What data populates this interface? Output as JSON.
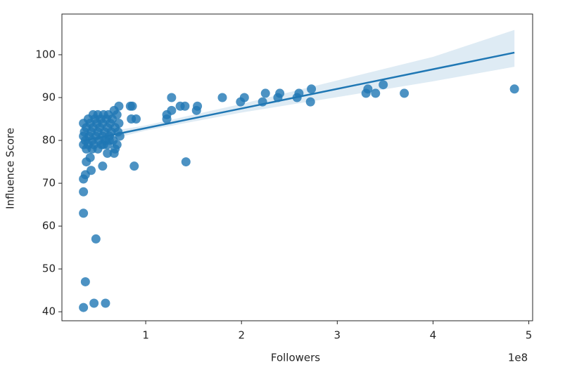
{
  "chart_data": {
    "type": "scatter",
    "x_label": "Followers",
    "y_label": "Influence Score",
    "x_offset_label": "1e8",
    "color": "#1f77b4",
    "alpha": 0.8,
    "xlim": [
      0.125,
      5.04
    ],
    "ylim": [
      37.9,
      109.5
    ],
    "xticks": [
      1,
      2,
      3,
      4,
      5
    ],
    "yticks": [
      40,
      50,
      60,
      70,
      80,
      90,
      100
    ],
    "grid": false,
    "x": [
      0.35,
      0.46,
      0.58,
      0.37,
      0.48,
      0.35,
      0.35,
      0.35,
      0.37,
      0.43,
      0.55,
      0.88,
      1.42,
      0.38,
      0.42,
      0.6,
      0.67,
      0.68,
      0.35,
      0.35,
      0.35,
      0.36,
      0.37,
      0.38,
      0.4,
      0.4,
      0.41,
      0.42,
      0.43,
      0.44,
      0.45,
      0.45,
      0.46,
      0.47,
      0.48,
      0.49,
      0.5,
      0.5,
      0.51,
      0.52,
      0.53,
      0.54,
      0.55,
      0.55,
      0.56,
      0.57,
      0.58,
      0.59,
      0.6,
      0.6,
      0.61,
      0.62,
      0.63,
      0.64,
      0.65,
      0.66,
      0.67,
      0.68,
      0.7,
      0.71,
      0.72,
      0.73,
      0.38,
      0.44,
      0.5,
      0.56,
      0.62,
      0.7,
      0.84,
      0.86,
      0.72,
      0.9,
      0.85,
      1.22,
      1.22,
      1.27,
      1.27,
      1.36,
      1.41,
      1.53,
      1.54,
      1.8,
      1.99,
      2.03,
      2.22,
      2.25,
      2.38,
      2.4,
      2.58,
      2.6,
      2.72,
      2.73,
      3.3,
      3.32,
      3.4,
      3.48,
      3.7,
      4.85
    ],
    "values": [
      41,
      42,
      42,
      47,
      57,
      63,
      68,
      71,
      72,
      73,
      74,
      74,
      75,
      75,
      76,
      77,
      77,
      78,
      79,
      81,
      84,
      82,
      80,
      83,
      79,
      85,
      81,
      84,
      82,
      80,
      86,
      83,
      79,
      85,
      81,
      84,
      82,
      86,
      80,
      83,
      85,
      79,
      81,
      84,
      86,
      82,
      80,
      85,
      83,
      79,
      86,
      81,
      84,
      82,
      85,
      80,
      87,
      83,
      86,
      82,
      84,
      81,
      78,
      78,
      78,
      79,
      80,
      79,
      88,
      88,
      88,
      85,
      85,
      85,
      86,
      87,
      90,
      88,
      88,
      87,
      88,
      90,
      89,
      90,
      89,
      91,
      90,
      91,
      90,
      91,
      89,
      92,
      91,
      92,
      91,
      93,
      91,
      92
    ],
    "regression": {
      "x": [
        0.35,
        4.85
      ],
      "y": [
        79.9,
        100.5
      ]
    },
    "confidence_band": {
      "x": [
        0.35,
        1,
        2,
        3,
        4,
        4.85
      ],
      "lower": [
        78.7,
        82.3,
        86.5,
        90.1,
        93.8,
        97.2
      ],
      "upper": [
        81.1,
        83.5,
        88.5,
        94.0,
        99.5,
        105.8
      ]
    }
  }
}
